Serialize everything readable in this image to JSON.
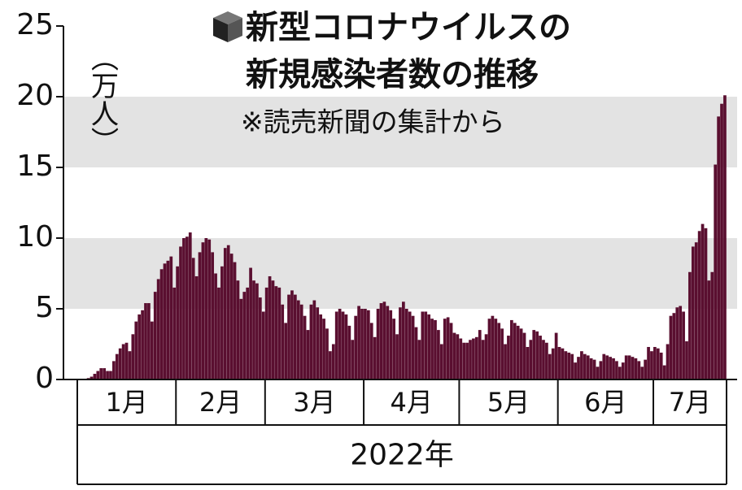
{
  "chart_data": {
    "type": "bar",
    "title": [
      "新型コロナウイルスの",
      "新規感染者数の推移"
    ],
    "note": "※読売新聞の集計から",
    "y_label": "（万人）",
    "x_label": "2022年",
    "color": "#5a0f30",
    "band_color": "#e3e3e3",
    "bands": true,
    "ylim": [
      0,
      25
    ],
    "yticks": [
      0,
      5,
      10,
      15,
      20,
      25
    ],
    "months": [
      {
        "label": "1月",
        "values": [
          0.05,
          0.05,
          0.05,
          0.1,
          0.2,
          0.4,
          0.6,
          0.8,
          0.8,
          0.6,
          0.6,
          1.3,
          1.8,
          2.2,
          2.5,
          2.6,
          2.0,
          3.2,
          4.1,
          4.6,
          4.9,
          5.4,
          5.4,
          4.1,
          6.2,
          7.1,
          7.8,
          8.2,
          8.4,
          8.7,
          6.5
        ]
      },
      {
        "label": "2月",
        "values": [
          8.0,
          9.4,
          10.0,
          10.1,
          10.4,
          8.6,
          7.3,
          9.0,
          9.7,
          10.0,
          9.9,
          9.0,
          7.5,
          6.5,
          8.0,
          9.3,
          9.5,
          8.9,
          8.3,
          7.0,
          5.7,
          6.2,
          6.5,
          7.9,
          7.0,
          6.8,
          5.8,
          4.8
        ]
      },
      {
        "label": "3月",
        "values": [
          6.5,
          7.3,
          7.0,
          6.6,
          6.5,
          5.3,
          4.0,
          6.0,
          6.3,
          6.0,
          5.6,
          5.3,
          4.5,
          3.5,
          5.3,
          5.6,
          5.1,
          4.6,
          4.3,
          3.6,
          2.0,
          2.5,
          4.8,
          5.0,
          4.8,
          4.6,
          3.8,
          2.8,
          4.5,
          5.2,
          5.0
        ]
      },
      {
        "label": "4月",
        "values": [
          5.0,
          4.9,
          4.0,
          3.0,
          5.0,
          5.4,
          5.5,
          5.2,
          4.9,
          4.3,
          3.2,
          5.1,
          5.5,
          5.0,
          4.8,
          4.5,
          3.7,
          2.8,
          4.8,
          4.8,
          4.6,
          4.3,
          4.2,
          3.5,
          2.5,
          4.3,
          4.4,
          4.0,
          3.3,
          3.2
        ]
      },
      {
        "label": "5月",
        "values": [
          2.9,
          2.6,
          2.6,
          2.8,
          2.9,
          3.0,
          3.5,
          2.8,
          3.2,
          4.3,
          4.5,
          4.3,
          4.0,
          3.6,
          2.5,
          3.1,
          4.2,
          4.0,
          3.8,
          3.6,
          3.3,
          2.3,
          2.8,
          3.5,
          3.4,
          3.1,
          2.8,
          2.6,
          1.8,
          2.2,
          3.3
        ]
      },
      {
        "label": "6月",
        "values": [
          2.3,
          2.2,
          2.0,
          1.9,
          1.8,
          1.2,
          1.6,
          2.0,
          1.8,
          1.7,
          1.5,
          1.4,
          0.9,
          1.3,
          1.8,
          1.7,
          1.6,
          1.5,
          1.3,
          0.9,
          1.2,
          1.7,
          1.7,
          1.6,
          1.5,
          1.3,
          0.9,
          1.4,
          2.3,
          2.0
        ]
      },
      {
        "label": "7月",
        "values": [
          2.3,
          2.2,
          1.9,
          1.0,
          2.5,
          4.5,
          4.7,
          5.1,
          5.2,
          4.8,
          2.7,
          7.6,
          9.4,
          9.7,
          10.5,
          11.0,
          10.7,
          7.0,
          7.6,
          15.2,
          18.6,
          19.5,
          20.1
        ]
      }
    ]
  }
}
